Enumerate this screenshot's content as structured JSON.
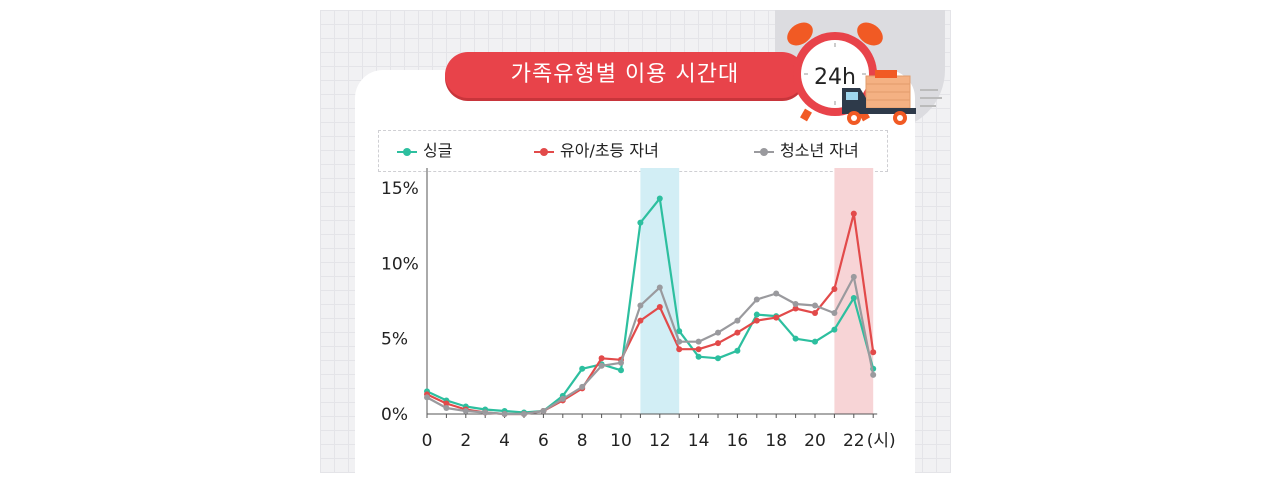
{
  "title": "가족유형별 이용 시간대",
  "badge": "24h",
  "legend": [
    {
      "label": "싱글",
      "color": "#2dbf9f"
    },
    {
      "label": "유아/초등 자녀",
      "color": "#e24a4a"
    },
    {
      "label": "청소년 자녀",
      "color": "#9a9a9e"
    }
  ],
  "chart_data": {
    "type": "line",
    "x": [
      0,
      1,
      2,
      3,
      4,
      5,
      6,
      7,
      8,
      9,
      10,
      11,
      12,
      13,
      14,
      15,
      16,
      17,
      18,
      19,
      20,
      21,
      22,
      23
    ],
    "x_ticks": [
      "0",
      "2",
      "4",
      "6",
      "8",
      "10",
      "12",
      "14",
      "16",
      "18",
      "20",
      "22"
    ],
    "x_unit": "(시)",
    "y_ticks": [
      "0%",
      "5%",
      "10%",
      "15%"
    ],
    "ylim": [
      0,
      15
    ],
    "highlights": [
      {
        "from": 11,
        "to": 13,
        "color": "#d2eef5"
      },
      {
        "from": 21,
        "to": 23,
        "color": "#f7d4d6"
      }
    ],
    "series": [
      {
        "name": "싱글",
        "color": "#2dbf9f",
        "values": [
          1.5,
          0.9,
          0.5,
          0.3,
          0.2,
          0.1,
          0.2,
          1.2,
          3.0,
          3.3,
          2.9,
          12.7,
          14.3,
          5.5,
          3.8,
          3.7,
          4.2,
          6.6,
          6.5,
          5.0,
          4.8,
          5.6,
          7.7,
          3.0
        ]
      },
      {
        "name": "유아/초등 자녀",
        "color": "#e24a4a",
        "values": [
          1.3,
          0.7,
          0.3,
          0.1,
          0.0,
          0.0,
          0.2,
          0.9,
          1.7,
          3.7,
          3.6,
          6.2,
          7.1,
          4.3,
          4.3,
          4.7,
          5.4,
          6.2,
          6.4,
          7.0,
          6.7,
          8.3,
          13.3,
          4.1
        ]
      },
      {
        "name": "청소년 자녀",
        "color": "#9a9a9e",
        "values": [
          1.1,
          0.4,
          0.2,
          0.1,
          0.0,
          0.0,
          0.2,
          1.0,
          1.8,
          3.2,
          3.4,
          7.2,
          8.4,
          4.8,
          4.8,
          5.4,
          6.2,
          7.6,
          8.0,
          7.3,
          7.2,
          6.7,
          9.1,
          2.6
        ]
      }
    ]
  }
}
